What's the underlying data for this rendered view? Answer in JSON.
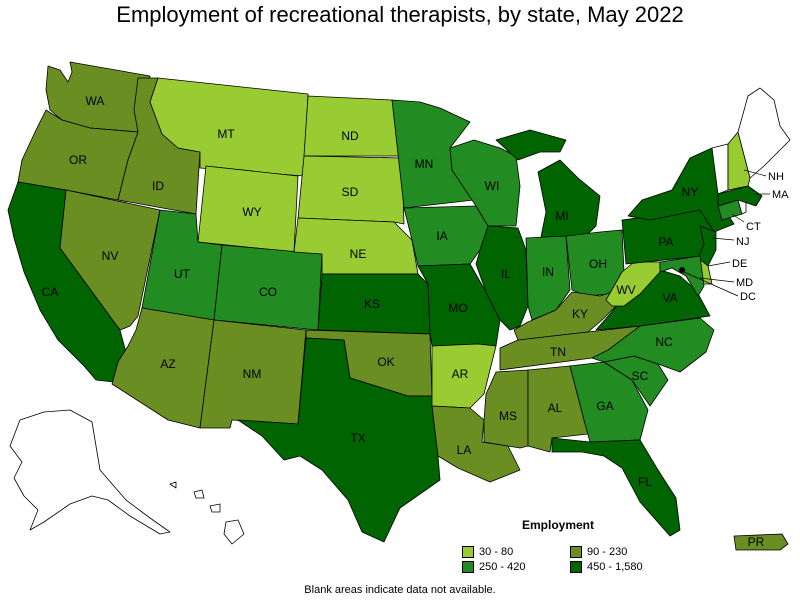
{
  "title": "Employment of recreational therapists, by state, May 2022",
  "note": "Blank areas indicate data not available.",
  "legend": {
    "title": "Employment",
    "items": [
      {
        "label": "30 - 80",
        "color": "#99cc33"
      },
      {
        "label": "90 - 230",
        "color": "#6b8e23"
      },
      {
        "label": "250 - 420",
        "color": "#228b22"
      },
      {
        "label": "450 - 1,580",
        "color": "#006400"
      }
    ]
  },
  "states": [
    {
      "abbr": "WA",
      "class": "90 - 230"
    },
    {
      "abbr": "OR",
      "class": "90 - 230"
    },
    {
      "abbr": "CA",
      "class": "450 - 1,580"
    },
    {
      "abbr": "NV",
      "class": "90 - 230"
    },
    {
      "abbr": "ID",
      "class": "90 - 230"
    },
    {
      "abbr": "MT",
      "class": "30 - 80"
    },
    {
      "abbr": "WY",
      "class": "30 - 80"
    },
    {
      "abbr": "UT",
      "class": "250 - 420"
    },
    {
      "abbr": "AZ",
      "class": "90 - 230"
    },
    {
      "abbr": "CO",
      "class": "250 - 420"
    },
    {
      "abbr": "NM",
      "class": "90 - 230"
    },
    {
      "abbr": "ND",
      "class": "30 - 80"
    },
    {
      "abbr": "SD",
      "class": "30 - 80"
    },
    {
      "abbr": "NE",
      "class": "30 - 80"
    },
    {
      "abbr": "KS",
      "class": "450 - 1,580"
    },
    {
      "abbr": "OK",
      "class": "90 - 230"
    },
    {
      "abbr": "TX",
      "class": "450 - 1,580"
    },
    {
      "abbr": "MN",
      "class": "250 - 420"
    },
    {
      "abbr": "IA",
      "class": "250 - 420"
    },
    {
      "abbr": "MO",
      "class": "450 - 1,580"
    },
    {
      "abbr": "AR",
      "class": "30 - 80"
    },
    {
      "abbr": "LA",
      "class": "90 - 230"
    },
    {
      "abbr": "WI",
      "class": "250 - 420"
    },
    {
      "abbr": "IL",
      "class": "450 - 1,580"
    },
    {
      "abbr": "MI",
      "class": "450 - 1,580"
    },
    {
      "abbr": "IN",
      "class": "250 - 420"
    },
    {
      "abbr": "OH",
      "class": "250 - 420"
    },
    {
      "abbr": "KY",
      "class": "90 - 230"
    },
    {
      "abbr": "TN",
      "class": "90 - 230"
    },
    {
      "abbr": "MS",
      "class": "90 - 230"
    },
    {
      "abbr": "AL",
      "class": "90 - 230"
    },
    {
      "abbr": "GA",
      "class": "250 - 420"
    },
    {
      "abbr": "FL",
      "class": "450 - 1,580"
    },
    {
      "abbr": "SC",
      "class": "250 - 420"
    },
    {
      "abbr": "NC",
      "class": "250 - 420"
    },
    {
      "abbr": "VA",
      "class": "450 - 1,580"
    },
    {
      "abbr": "WV",
      "class": "30 - 80"
    },
    {
      "abbr": "PA",
      "class": "450 - 1,580"
    },
    {
      "abbr": "NY",
      "class": "450 - 1,580"
    },
    {
      "abbr": "NJ",
      "class": "450 - 1,580"
    },
    {
      "abbr": "DE",
      "class": "30 - 80"
    },
    {
      "abbr": "MD",
      "class": "250 - 420"
    },
    {
      "abbr": "DC",
      "class": "450 - 1,580"
    },
    {
      "abbr": "CT",
      "class": "250 - 420"
    },
    {
      "abbr": "MA",
      "class": "450 - 1,580"
    },
    {
      "abbr": "NH",
      "class": "30 - 80"
    },
    {
      "abbr": "ME",
      "class": ""
    },
    {
      "abbr": "VT",
      "class": ""
    },
    {
      "abbr": "RI",
      "class": ""
    },
    {
      "abbr": "AK",
      "class": ""
    },
    {
      "abbr": "HI",
      "class": ""
    },
    {
      "abbr": "PR",
      "class": "90 - 230"
    }
  ]
}
